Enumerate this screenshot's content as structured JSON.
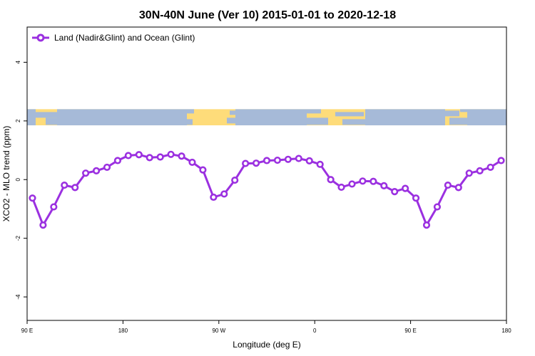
{
  "chart_data": {
    "type": "line",
    "title": "30N-40N June (Ver 10)   2015-01-01 to 2020-12-18",
    "xlabel": "Longitude (deg E)",
    "ylabel": "XCO2 - MLO trend (ppm)",
    "xlim": [
      90,
      540
    ],
    "ylim": [
      -4.8,
      5.2
    ],
    "x_ticks": [
      {
        "value": 90,
        "label": "90 E"
      },
      {
        "value": 180,
        "label": "180"
      },
      {
        "value": 270,
        "label": "90 W"
      },
      {
        "value": 360,
        "label": "0"
      },
      {
        "value": 450,
        "label": "90 E"
      },
      {
        "value": 540,
        "label": "180"
      }
    ],
    "y_ticks": [
      {
        "value": -4,
        "label": "-4"
      },
      {
        "value": -2,
        "label": "-2"
      },
      {
        "value": 0,
        "label": "0"
      },
      {
        "value": 2,
        "label": "2"
      },
      {
        "value": 4,
        "label": "4"
      }
    ],
    "legend_position": "top-left",
    "series": [
      {
        "name": "Land (Nadir&Glint) and Ocean (Glint)",
        "color": "#9b30e0",
        "x": [
          95,
          105,
          115,
          125,
          135,
          145,
          155,
          165,
          175,
          185,
          195,
          205,
          215,
          225,
          235,
          245,
          255,
          265,
          275,
          285,
          295,
          305,
          315,
          325,
          335,
          345,
          355,
          365,
          375,
          385,
          395,
          405,
          415,
          425,
          435,
          445,
          455,
          465,
          475,
          485,
          495,
          505,
          515,
          525,
          535
        ],
        "y": [
          -0.63,
          -1.55,
          -0.93,
          -0.19,
          -0.27,
          0.22,
          0.3,
          0.42,
          0.65,
          0.82,
          0.85,
          0.75,
          0.77,
          0.86,
          0.8,
          0.59,
          0.33,
          -0.6,
          -0.49,
          -0.02,
          0.55,
          0.56,
          0.65,
          0.66,
          0.69,
          0.72,
          0.64,
          0.52,
          0.0,
          -0.26,
          -0.15,
          -0.05,
          -0.06,
          -0.21,
          -0.41,
          -0.3,
          -0.63,
          -1.55,
          -0.93,
          -0.19,
          -0.27,
          0.22,
          0.3,
          0.42,
          0.65
        ]
      }
    ],
    "map_strip": {
      "ylim": [
        1.85,
        2.4
      ],
      "ocean_color": "#a6bad8",
      "land_color": "#fedc7a"
    }
  }
}
